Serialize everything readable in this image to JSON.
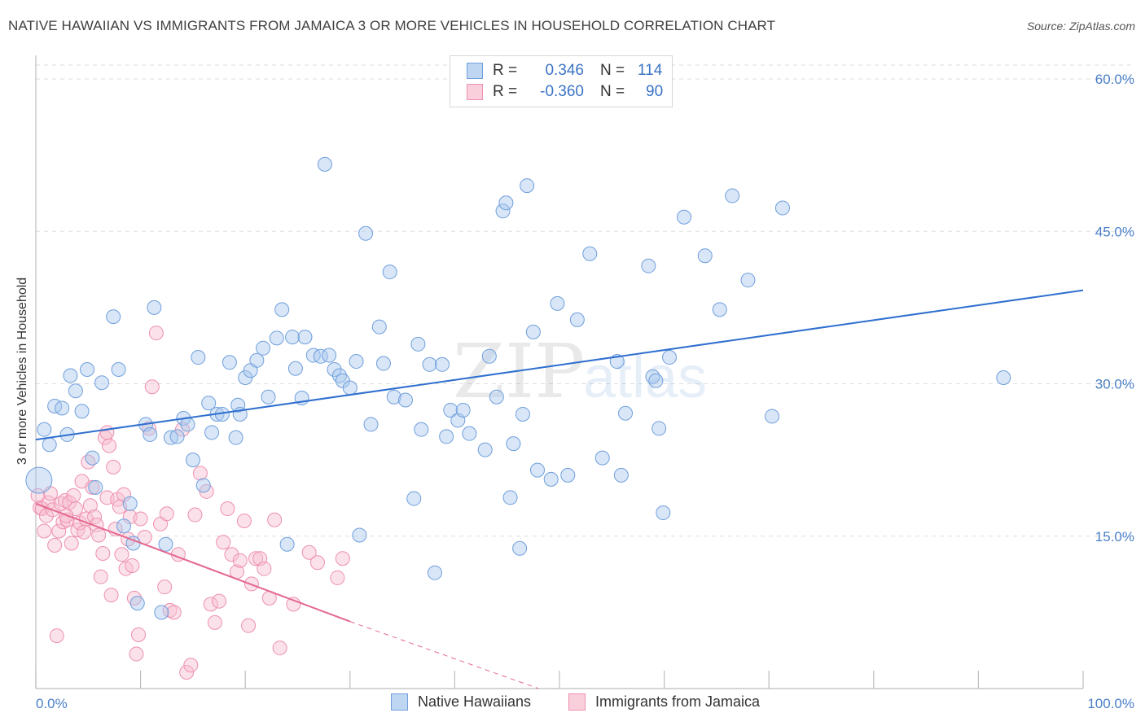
{
  "title": "NATIVE HAWAIIAN VS IMMIGRANTS FROM JAMAICA 3 OR MORE VEHICLES IN HOUSEHOLD CORRELATION CHART",
  "source": "Source: ZipAtlas.com",
  "watermark": {
    "zip": "ZIP",
    "atlas": "atlas"
  },
  "stats": {
    "rows": [
      {
        "r_label": "R =",
        "r_value": "0.346",
        "n_label": "N =",
        "n_value": "114"
      },
      {
        "r_label": "R =",
        "r_value": "-0.360",
        "n_label": "N =",
        "n_value": "90"
      }
    ]
  },
  "legend": {
    "items": [
      "Native Hawaiians",
      "Immigrants from Jamaica"
    ]
  },
  "colors": {
    "blue_fill": "#a9c8ee",
    "blue_stroke": "#6f9fdc",
    "blue_line": "#2f6fcf",
    "pink_fill": "#f6bfd0",
    "pink_stroke": "#ee8fb0",
    "pink_line": "#e4698f",
    "tick_text": "#4a80c8",
    "grid": "#dedede"
  },
  "chart_data": {
    "type": "scatter",
    "title": "NATIVE HAWAIIAN VS IMMIGRANTS FROM JAMAICA 3 OR MORE VEHICLES IN HOUSEHOLD CORRELATION CHART",
    "xlabel": "",
    "ylabel": "3 or more Vehicles in Household",
    "xlim": [
      0,
      100
    ],
    "ylim": [
      0,
      60
    ],
    "x_ticks": [
      "0.0%",
      "100.0%"
    ],
    "y_ticks": [
      {
        "value": 60,
        "label": "60.0%"
      },
      {
        "value": 45,
        "label": "45.0%"
      },
      {
        "value": 30,
        "label": "30.0%"
      },
      {
        "value": 15,
        "label": "15.0%"
      }
    ],
    "grid": true,
    "legend_position": "bottom",
    "series": [
      {
        "name": "Native Hawaiians",
        "color": "#a9c8ee",
        "trend": {
          "x0": 0,
          "y0": 24.5,
          "x1": 100,
          "y1": 39.2,
          "dash_from": null
        },
        "points": [
          [
            0.3,
            20.5
          ],
          [
            0.8,
            25.5
          ],
          [
            1.3,
            24
          ],
          [
            1.8,
            27.8
          ],
          [
            2.5,
            27.6
          ],
          [
            3,
            25
          ],
          [
            3.3,
            30.8
          ],
          [
            3.8,
            29.3
          ],
          [
            4.4,
            27.3
          ],
          [
            4.9,
            31.4
          ],
          [
            5.4,
            22.7
          ],
          [
            5.7,
            19.8
          ],
          [
            6.3,
            30.1
          ],
          [
            7.4,
            36.6
          ],
          [
            7.9,
            31.4
          ],
          [
            8.4,
            16
          ],
          [
            9,
            18.2
          ],
          [
            9.3,
            14.3
          ],
          [
            9.7,
            8.4
          ],
          [
            10.5,
            26
          ],
          [
            10.9,
            25
          ],
          [
            11.3,
            37.5
          ],
          [
            12,
            7.5
          ],
          [
            12.4,
            14.2
          ],
          [
            12.9,
            24.7
          ],
          [
            13.5,
            24.8
          ],
          [
            14.1,
            26.6
          ],
          [
            14.5,
            26
          ],
          [
            15,
            22.5
          ],
          [
            15.5,
            32.6
          ],
          [
            16,
            20
          ],
          [
            16.5,
            28.1
          ],
          [
            16.8,
            25.2
          ],
          [
            17.3,
            27
          ],
          [
            17.8,
            27
          ],
          [
            18.5,
            32.1
          ],
          [
            19.1,
            24.7
          ],
          [
            19.3,
            27.9
          ],
          [
            19.5,
            27
          ],
          [
            20,
            30.6
          ],
          [
            20.5,
            31.3
          ],
          [
            21.1,
            32.3
          ],
          [
            21.7,
            33.5
          ],
          [
            22.2,
            28.7
          ],
          [
            23,
            34.5
          ],
          [
            23.5,
            37.3
          ],
          [
            24,
            14.2
          ],
          [
            24.5,
            34.6
          ],
          [
            24.8,
            31.5
          ],
          [
            25.4,
            28.6
          ],
          [
            25.7,
            34.6
          ],
          [
            26.5,
            32.8
          ],
          [
            27.2,
            32.7
          ],
          [
            27.6,
            51.6
          ],
          [
            28,
            32.8
          ],
          [
            28.5,
            31.4
          ],
          [
            29,
            30.8
          ],
          [
            29.3,
            30.3
          ],
          [
            30,
            29.6
          ],
          [
            30.6,
            32.2
          ],
          [
            30.9,
            15.1
          ],
          [
            31.5,
            44.8
          ],
          [
            32,
            26
          ],
          [
            32.8,
            35.6
          ],
          [
            33.2,
            32
          ],
          [
            33.8,
            41
          ],
          [
            34.2,
            28.7
          ],
          [
            35.3,
            28.4
          ],
          [
            36.1,
            18.7
          ],
          [
            36.5,
            33.9
          ],
          [
            36.8,
            25.5
          ],
          [
            37.6,
            31.9
          ],
          [
            38.1,
            11.4
          ],
          [
            38.8,
            31.9
          ],
          [
            39.2,
            24.8
          ],
          [
            39.6,
            27.4
          ],
          [
            40.3,
            26.4
          ],
          [
            40.8,
            27.4
          ],
          [
            41.4,
            25.1
          ],
          [
            42.9,
            23.5
          ],
          [
            43.3,
            32.7
          ],
          [
            44,
            28.7
          ],
          [
            44.6,
            47
          ],
          [
            44.9,
            47.8
          ],
          [
            45.3,
            18.8
          ],
          [
            45.6,
            24.1
          ],
          [
            46.2,
            13.8
          ],
          [
            46.5,
            27
          ],
          [
            46.9,
            49.5
          ],
          [
            47.5,
            35.1
          ],
          [
            47.9,
            21.5
          ],
          [
            49.2,
            20.6
          ],
          [
            49.8,
            37.9
          ],
          [
            50.8,
            21
          ],
          [
            51.7,
            36.3
          ],
          [
            52.9,
            42.8
          ],
          [
            54.1,
            22.7
          ],
          [
            55.5,
            32.2
          ],
          [
            55.9,
            21
          ],
          [
            56.3,
            27.1
          ],
          [
            58.5,
            41.6
          ],
          [
            58.9,
            30.7
          ],
          [
            59.2,
            30.3
          ],
          [
            59.5,
            25.6
          ],
          [
            59.9,
            17.3
          ],
          [
            60.5,
            32.6
          ],
          [
            61.9,
            46.4
          ],
          [
            63.9,
            42.6
          ],
          [
            65.3,
            37.3
          ],
          [
            66.5,
            48.5
          ],
          [
            68,
            40.2
          ],
          [
            70.3,
            26.8
          ],
          [
            71.3,
            47.3
          ],
          [
            92.4,
            30.6
          ]
        ]
      },
      {
        "name": "Immigrants from Jamaica",
        "color": "#f6bfd0",
        "trend": {
          "x0": 0,
          "y0": 18.2,
          "x1": 30,
          "y1": 6.6,
          "dash_from": 30,
          "x2": 48,
          "y2": 0
        },
        "points": [
          [
            0.2,
            19
          ],
          [
            0.4,
            17.8
          ],
          [
            0.6,
            17.7
          ],
          [
            0.8,
            15.5
          ],
          [
            1,
            17
          ],
          [
            1.2,
            18.3
          ],
          [
            1.4,
            19.2
          ],
          [
            1.6,
            17.6
          ],
          [
            1.8,
            14.1
          ],
          [
            2,
            5.2
          ],
          [
            2.2,
            15.5
          ],
          [
            2.4,
            18.2
          ],
          [
            2.6,
            16.4
          ],
          [
            2.8,
            18.5
          ],
          [
            3,
            16.6
          ],
          [
            3.2,
            18.3
          ],
          [
            3.4,
            14.3
          ],
          [
            3.6,
            19
          ],
          [
            3.8,
            17.7
          ],
          [
            4,
            15.6
          ],
          [
            4.2,
            16.3
          ],
          [
            4.4,
            20.4
          ],
          [
            4.6,
            15.4
          ],
          [
            4.8,
            16.7
          ],
          [
            5,
            22.3
          ],
          [
            5.2,
            18
          ],
          [
            5.4,
            19.8
          ],
          [
            5.6,
            16.9
          ],
          [
            5.8,
            16.1
          ],
          [
            6,
            15.1
          ],
          [
            6.2,
            11
          ],
          [
            6.4,
            13.3
          ],
          [
            6.6,
            24.7
          ],
          [
            6.8,
            18.8
          ],
          [
            7,
            23.9
          ],
          [
            7.2,
            9.2
          ],
          [
            7.4,
            21.8
          ],
          [
            7.6,
            15.7
          ],
          [
            7.8,
            18.6
          ],
          [
            8,
            17.9
          ],
          [
            8.2,
            13.2
          ],
          [
            8.4,
            19.1
          ],
          [
            8.6,
            11.8
          ],
          [
            8.8,
            14.7
          ],
          [
            9,
            16.9
          ],
          [
            9.2,
            12.1
          ],
          [
            9.4,
            8.9
          ],
          [
            9.6,
            3.4
          ],
          [
            9.8,
            5.3
          ],
          [
            10,
            16.7
          ],
          [
            10.4,
            14.9
          ],
          [
            10.8,
            25.6
          ],
          [
            11.1,
            29.7
          ],
          [
            11.5,
            35
          ],
          [
            11.9,
            16.2
          ],
          [
            12.3,
            10
          ],
          [
            12.5,
            17.2
          ],
          [
            12.8,
            7.7
          ],
          [
            13.2,
            7.5
          ],
          [
            13.6,
            13.2
          ],
          [
            14,
            25.5
          ],
          [
            14.4,
            1.6
          ],
          [
            14.8,
            2.3
          ],
          [
            15.2,
            17.1
          ],
          [
            15.7,
            21.2
          ],
          [
            16.3,
            19.4
          ],
          [
            16.7,
            8.3
          ],
          [
            17.1,
            6.5
          ],
          [
            17.5,
            8.6
          ],
          [
            17.9,
            14.4
          ],
          [
            18.3,
            17.7
          ],
          [
            18.7,
            13.2
          ],
          [
            19.2,
            11.5
          ],
          [
            19.5,
            12.6
          ],
          [
            19.9,
            16.5
          ],
          [
            20.3,
            6.2
          ],
          [
            20.6,
            10.3
          ],
          [
            21,
            12.8
          ],
          [
            21.4,
            12.8
          ],
          [
            21.8,
            11.8
          ],
          [
            22.3,
            8.9
          ],
          [
            22.8,
            16.6
          ],
          [
            23.3,
            4
          ],
          [
            24.6,
            8.3
          ],
          [
            26.1,
            13.4
          ],
          [
            26.9,
            12.4
          ],
          [
            28.8,
            10.9
          ],
          [
            29.3,
            12.8
          ],
          [
            6.8,
            25.2
          ],
          [
            2.9,
            17
          ]
        ]
      }
    ]
  }
}
